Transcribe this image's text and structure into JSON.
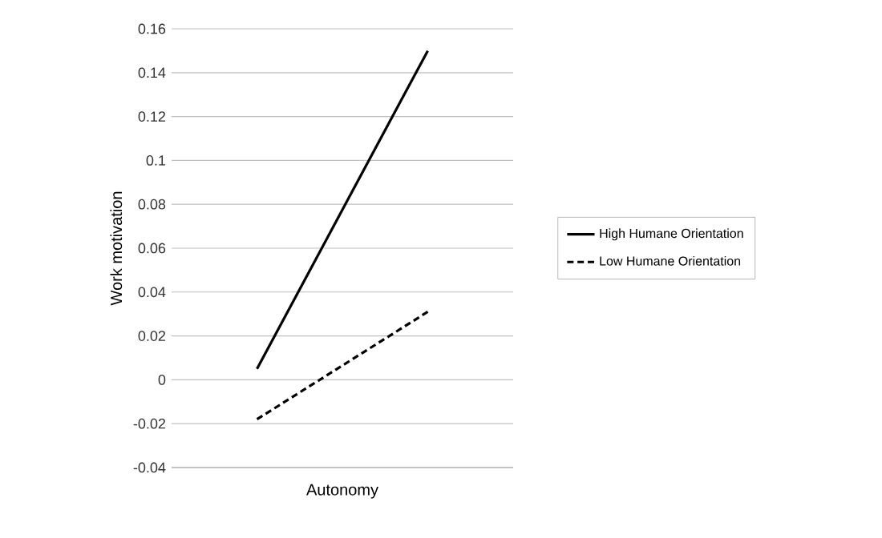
{
  "chart_data": {
    "type": "line",
    "xlabel": "Autonomy",
    "ylabel": "Work motivation",
    "categories": [
      null,
      null
    ],
    "series": [
      {
        "name": "High Humane Orientation",
        "color": "#000000",
        "line_style": "solid",
        "values": [
          0.005,
          0.15
        ]
      },
      {
        "name": "Low Humane Orientation",
        "color": "#000000",
        "line_style": "dashed",
        "values": [
          -0.018,
          0.031
        ]
      }
    ],
    "ylim": [
      -0.04,
      0.16
    ],
    "yticks": [
      -0.04,
      -0.02,
      0,
      0.02,
      0.04,
      0.06,
      0.08,
      0.1,
      0.12,
      0.14,
      0.16
    ],
    "grid": "y",
    "legend": "right",
    "marker": "none"
  }
}
